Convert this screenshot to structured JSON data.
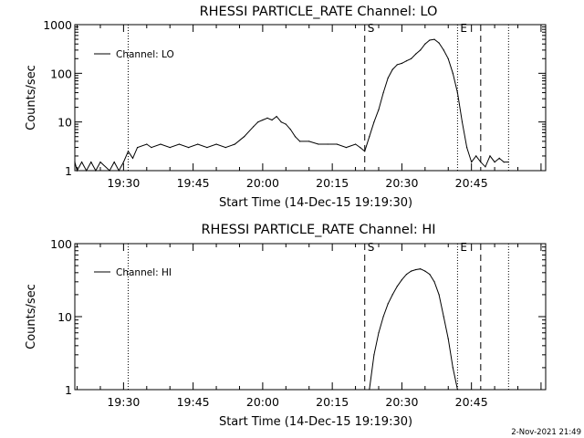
{
  "footer_timestamp": "2-Nov-2021 21:49",
  "chart_data": [
    {
      "type": "line",
      "title": "RHESSI PARTICLE_RATE Channel: LO",
      "xlabel": "Start Time (14-Dec-15 19:19:30)",
      "ylabel": "Counts/sec",
      "x_range": [
        "19:19:30",
        "21:01:00"
      ],
      "y_scale": "log",
      "ylim": [
        1,
        1000
      ],
      "xticks": [
        "19:30",
        "19:45",
        "20:00",
        "20:15",
        "20:30",
        "20:45"
      ],
      "yticks": [
        "1",
        "10",
        "100",
        "1000"
      ],
      "legend": {
        "position": "top-left",
        "label": "Channel: LO"
      },
      "markers": [
        {
          "label": "S",
          "time": "20:22",
          "style": "dashed"
        },
        {
          "label": "E",
          "time": "20:42",
          "style": "dotted"
        },
        {
          "label": "",
          "time": "19:31",
          "style": "dotted"
        },
        {
          "label": "",
          "time": "20:47",
          "style": "dashed"
        },
        {
          "label": "",
          "time": "20:53",
          "style": "dotted"
        }
      ],
      "series": [
        {
          "name": "Channel: LO",
          "x": [
            "19:19:30",
            "19:20",
            "19:21",
            "19:22",
            "19:23",
            "19:24",
            "19:25",
            "19:27",
            "19:28",
            "19:29",
            "19:30",
            "19:31",
            "19:32",
            "19:33",
            "19:35",
            "19:36",
            "19:38",
            "19:40",
            "19:42",
            "19:44",
            "19:46",
            "19:48",
            "19:50",
            "19:52",
            "19:54",
            "19:56",
            "19:58",
            "19:59",
            "20:00",
            "20:01",
            "20:02",
            "20:03",
            "20:04",
            "20:05",
            "20:06",
            "20:07",
            "20:08",
            "20:10",
            "20:12",
            "20:14",
            "20:16",
            "20:18",
            "20:20",
            "20:21",
            "20:22",
            "20:23",
            "20:24",
            "20:25",
            "20:26",
            "20:27",
            "20:28",
            "20:29",
            "20:30",
            "20:31",
            "20:32",
            "20:33",
            "20:34",
            "20:35",
            "20:36",
            "20:37",
            "20:38",
            "20:39",
            "20:40",
            "20:41",
            "20:42",
            "20:43",
            "20:44",
            "20:45",
            "20:46",
            "20:47",
            "20:48",
            "20:49",
            "20:50",
            "20:51",
            "20:52",
            "20:53"
          ],
          "values": [
            1.5,
            1,
            1.5,
            1,
            1.5,
            1,
            1.5,
            1,
            1.5,
            1,
            1.5,
            2.5,
            1.8,
            3,
            3.5,
            3,
            3.5,
            3,
            3.5,
            3,
            3.5,
            3,
            3.5,
            3,
            3.5,
            5,
            8,
            10,
            11,
            12,
            11,
            13,
            10,
            9,
            7,
            5,
            4,
            4,
            3.5,
            3.5,
            3.5,
            3,
            3.5,
            3,
            2.5,
            5,
            10,
            18,
            40,
            80,
            120,
            150,
            160,
            180,
            200,
            250,
            300,
            400,
            480,
            500,
            420,
            300,
            200,
            100,
            40,
            10,
            3,
            1.5,
            2,
            1.5,
            1.2,
            2,
            1.5,
            1.8,
            1.5,
            1.5
          ]
        }
      ]
    },
    {
      "type": "line",
      "title": "RHESSI PARTICLE_RATE Channel: HI",
      "xlabel": "Start Time (14-Dec-15 19:19:30)",
      "ylabel": "Counts/sec",
      "x_range": [
        "19:19:30",
        "21:01:00"
      ],
      "y_scale": "log",
      "ylim": [
        1,
        100
      ],
      "xticks": [
        "19:30",
        "19:45",
        "20:00",
        "20:15",
        "20:30",
        "20:45"
      ],
      "yticks": [
        "1",
        "10",
        "100"
      ],
      "legend": {
        "position": "top-left",
        "label": "Channel: HI"
      },
      "markers": [
        {
          "label": "S",
          "time": "20:22",
          "style": "dashed"
        },
        {
          "label": "E",
          "time": "20:42",
          "style": "dotted"
        },
        {
          "label": "",
          "time": "19:31",
          "style": "dotted"
        },
        {
          "label": "",
          "time": "20:47",
          "style": "dashed"
        },
        {
          "label": "",
          "time": "20:53",
          "style": "dotted"
        }
      ],
      "series": [
        {
          "name": "Channel: HI",
          "x": [
            "20:23",
            "20:24",
            "20:25",
            "20:26",
            "20:27",
            "20:28",
            "20:29",
            "20:30",
            "20:31",
            "20:32",
            "20:33",
            "20:34",
            "20:35",
            "20:36",
            "20:37",
            "20:38",
            "20:39",
            "20:40",
            "20:41",
            "20:42"
          ],
          "values": [
            1,
            3,
            6,
            10,
            15,
            20,
            26,
            32,
            38,
            42,
            44,
            45,
            42,
            38,
            30,
            20,
            10,
            5,
            2,
            1
          ]
        }
      ]
    }
  ]
}
